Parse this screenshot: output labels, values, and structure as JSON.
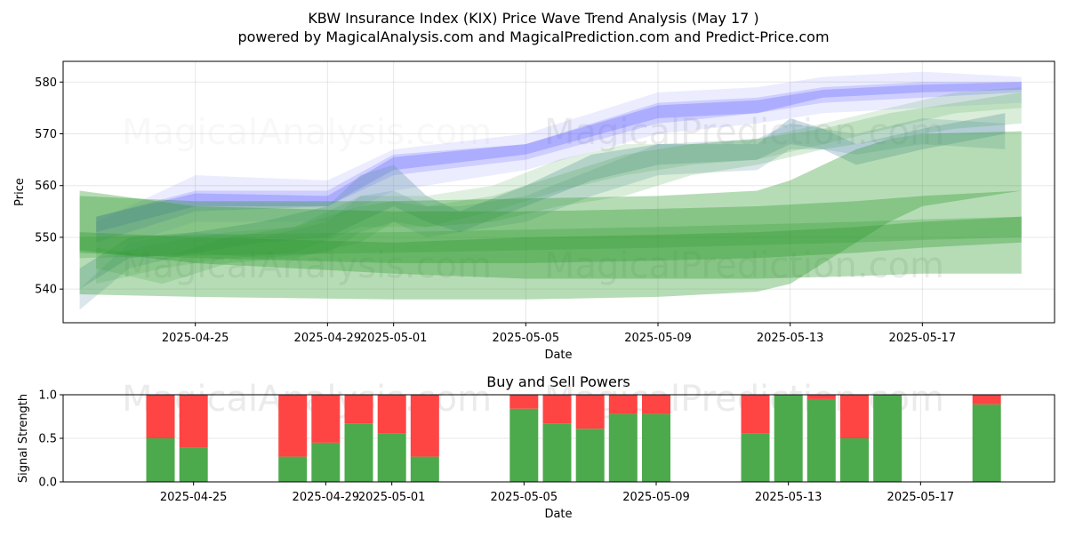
{
  "chart_data": [
    {
      "type": "area",
      "title": "KBW Insurance Index (KIX) Price Wave Trend Analysis (May 17 )",
      "subtitle": "powered by MagicalAnalysis.com and MagicalPrediction.com and Predict-Price.com",
      "xlabel": "Date",
      "ylabel": "Price",
      "xlim": [
        "2025-04-21",
        "2025-05-21"
      ],
      "ylim": [
        533.5,
        584.0
      ],
      "x_ticks": [
        "2025-04-25",
        "2025-04-29",
        "2025-05-01",
        "2025-05-05",
        "2025-05-09",
        "2025-05-13",
        "2025-05-17"
      ],
      "y_ticks": [
        540,
        550,
        560,
        570,
        580
      ],
      "grid": true,
      "watermarks": [
        "MagicalAnalysis.com",
        "MagicalPrediction.com"
      ],
      "colors": {
        "blue": "#6666ff",
        "green": "#2e9a2e",
        "steel": "#6b9ab0"
      },
      "series": [
        {
          "name": "blue-wave-1",
          "color": "blue",
          "opacity": 0.12,
          "x": [
            "2025-04-22",
            "2025-04-25",
            "2025-04-29",
            "2025-05-01",
            "2025-05-05",
            "2025-05-09",
            "2025-05-12",
            "2025-05-14",
            "2025-05-17",
            "2025-05-20"
          ],
          "lower": [
            547,
            553,
            553,
            559,
            563,
            570,
            572,
            574,
            575,
            576
          ],
          "upper": [
            553,
            562,
            561,
            567,
            570,
            578,
            579,
            581,
            582,
            581
          ]
        },
        {
          "name": "blue-wave-2",
          "color": "blue",
          "opacity": 0.22,
          "x": [
            "2025-04-22",
            "2025-04-25",
            "2025-04-29",
            "2025-05-01",
            "2025-05-05",
            "2025-05-09",
            "2025-05-12",
            "2025-05-14",
            "2025-05-17",
            "2025-05-20"
          ],
          "lower": [
            549,
            555,
            556,
            562,
            565,
            572,
            574,
            576,
            577,
            578
          ],
          "upper": [
            554,
            559,
            559,
            566,
            568,
            576,
            577,
            579,
            580,
            580
          ]
        },
        {
          "name": "blue-wave-3",
          "color": "blue",
          "opacity": 0.32,
          "x": [
            "2025-04-22",
            "2025-04-25",
            "2025-04-29",
            "2025-05-01",
            "2025-05-05",
            "2025-05-09",
            "2025-05-12",
            "2025-05-14",
            "2025-05-17",
            "2025-05-20"
          ],
          "lower": [
            551,
            556,
            556,
            563,
            566,
            573,
            574,
            577,
            578,
            578.5
          ],
          "upper": [
            554,
            558.5,
            558,
            565.5,
            568,
            575.5,
            576.5,
            578.5,
            579.5,
            580
          ]
        },
        {
          "name": "steel-wave-1",
          "color": "steel",
          "opacity": 0.35,
          "x": [
            "2025-04-21.5",
            "2025-04-23",
            "2025-04-25",
            "2025-04-27",
            "2025-04-29",
            "2025-04-30",
            "2025-05-01",
            "2025-05-02",
            "2025-05-03",
            "2025-05-05",
            "2025-05-07",
            "2025-05-09",
            "2025-05-12",
            "2025-05-13",
            "2025-05-14",
            "2025-05-15",
            "2025-05-17",
            "2025-05-19.5"
          ],
          "lower": [
            540,
            546,
            547,
            549,
            550,
            553,
            556,
            553,
            551,
            556,
            561,
            564,
            565,
            568,
            567,
            564,
            567,
            570
          ],
          "upper": [
            544,
            550,
            551,
            553,
            556,
            562,
            564,
            558,
            555,
            560,
            566,
            568,
            568,
            573,
            571,
            568,
            571,
            574
          ]
        },
        {
          "name": "steel-wave-2",
          "color": "steel",
          "opacity": 0.25,
          "x": [
            "2025-04-21.5",
            "2025-04-23",
            "2025-04-25",
            "2025-04-27",
            "2025-04-29",
            "2025-04-30",
            "2025-05-01",
            "2025-05-02",
            "2025-05-03",
            "2025-05-05",
            "2025-05-07",
            "2025-05-09",
            "2025-05-12",
            "2025-05-13",
            "2025-05-14",
            "2025-05-15",
            "2025-05-17",
            "2025-05-19.5"
          ],
          "lower": [
            536,
            544,
            547,
            546,
            547,
            551,
            553,
            550,
            551,
            553,
            558,
            562,
            563,
            567,
            567,
            566,
            568,
            567
          ],
          "upper": [
            540,
            549,
            551,
            550,
            553,
            558,
            559,
            556,
            556,
            558,
            563,
            568,
            569,
            572,
            571,
            570,
            573,
            572
          ]
        },
        {
          "name": "green-band-outer",
          "color": "green",
          "opacity": 0.35,
          "x": [
            "2025-04-21.5",
            "2025-04-25",
            "2025-05-01",
            "2025-05-05",
            "2025-05-09",
            "2025-05-12",
            "2025-05-13",
            "2025-05-14",
            "2025-05-15",
            "2025-05-16",
            "2025-05-17",
            "2025-05-20"
          ],
          "lower": [
            539,
            538.5,
            538,
            538,
            538.5,
            539.5,
            541,
            545,
            549,
            553,
            556,
            559
          ],
          "upper": [
            558,
            557,
            557,
            557.5,
            558,
            559,
            561,
            564,
            567,
            569,
            570,
            570.5
          ]
        },
        {
          "name": "green-band-1",
          "color": "green",
          "opacity": 0.35,
          "x": [
            "2025-04-21.5",
            "2025-04-25",
            "2025-05-01",
            "2025-05-05",
            "2025-05-09",
            "2025-05-12",
            "2025-05-15",
            "2025-05-17",
            "2025-05-20"
          ],
          "lower": [
            547,
            546,
            545,
            545,
            545.5,
            546,
            547,
            548,
            549
          ],
          "upper": [
            559,
            556,
            555,
            555,
            555.5,
            556,
            557,
            558,
            559
          ]
        },
        {
          "name": "green-band-2",
          "color": "green",
          "opacity": 0.35,
          "x": [
            "2025-04-21.5",
            "2025-04-25",
            "2025-05-01",
            "2025-05-05",
            "2025-05-09",
            "2025-05-12",
            "2025-05-15",
            "2025-05-17",
            "2025-05-20"
          ],
          "lower": [
            547.5,
            545,
            543,
            542,
            542,
            542,
            542.5,
            543,
            543
          ],
          "upper": [
            551,
            550,
            549,
            550,
            550.5,
            551,
            552,
            553,
            554
          ]
        },
        {
          "name": "green-band-3",
          "color": "green",
          "opacity": 0.25,
          "x": [
            "2025-04-21.5",
            "2025-04-25",
            "2025-05-01",
            "2025-05-05",
            "2025-05-09",
            "2025-05-12",
            "2025-05-15",
            "2025-05-17",
            "2025-05-20"
          ],
          "lower": [
            546,
            546.5,
            547,
            547.5,
            548,
            548.5,
            549,
            549.5,
            550
          ],
          "upper": [
            550,
            550.5,
            551,
            551.5,
            552,
            552.5,
            553,
            553.5,
            554
          ]
        },
        {
          "name": "green-wave-light-1",
          "color": "green",
          "opacity": 0.18,
          "x": [
            "2025-04-22",
            "2025-04-24",
            "2025-04-26",
            "2025-04-28",
            "2025-04-30",
            "2025-05-01",
            "2025-05-02",
            "2025-05-04",
            "2025-05-06",
            "2025-05-08",
            "2025-05-10",
            "2025-05-12",
            "2025-05-14",
            "2025-05-16",
            "2025-05-18",
            "2025-05-20"
          ],
          "lower": [
            544,
            541,
            545,
            546,
            549,
            553,
            552,
            553,
            556,
            558,
            562,
            564,
            567,
            569,
            571,
            572
          ],
          "upper": [
            548,
            546,
            550,
            552,
            556,
            557,
            556,
            558,
            562,
            566,
            568,
            569,
            571,
            574,
            576,
            578
          ]
        },
        {
          "name": "green-wave-light-2",
          "color": "green",
          "opacity": 0.15,
          "x": [
            "2025-04-22",
            "2025-04-24",
            "2025-04-26",
            "2025-04-28",
            "2025-04-30",
            "2025-05-02",
            "2025-05-04",
            "2025-05-06",
            "2025-05-08",
            "2025-05-10",
            "2025-05-12",
            "2025-05-14",
            "2025-05-16",
            "2025-05-18",
            "2025-05-20"
          ],
          "lower": [
            541,
            544,
            546,
            547,
            552,
            552,
            555,
            559,
            562,
            564,
            565,
            568,
            571,
            574,
            575
          ],
          "upper": [
            546,
            549,
            551,
            552,
            558,
            558,
            560,
            565,
            568,
            568,
            569,
            572,
            575,
            578,
            579
          ]
        }
      ]
    },
    {
      "type": "bar",
      "title": "Buy and Sell Powers",
      "xlabel": "Date",
      "ylabel": "Signal Strength",
      "ylim": [
        0,
        1.0
      ],
      "y_ticks": [
        "0.0",
        "0.5",
        "1.0"
      ],
      "x_ticks": [
        "2025-04-25",
        "2025-04-29",
        "2025-05-01",
        "2025-05-05",
        "2025-05-09",
        "2025-05-13",
        "2025-05-17"
      ],
      "grid": true,
      "colors": {
        "buy": "#4caa4c",
        "sell": "#ff4444"
      },
      "series": [
        {
          "name": "Buy",
          "x": [
            "2025-04-24",
            "2025-04-25",
            "2025-04-28",
            "2025-04-29",
            "2025-04-30",
            "2025-05-01",
            "2025-05-02",
            "2025-05-05",
            "2025-05-06",
            "2025-05-07",
            "2025-05-08",
            "2025-05-09",
            "2025-05-12",
            "2025-05-13",
            "2025-05-14",
            "2025-05-15",
            "2025-05-16",
            "2025-05-19"
          ],
          "values": [
            0.5,
            0.39,
            0.29,
            0.45,
            0.67,
            0.56,
            0.29,
            0.84,
            0.67,
            0.61,
            0.78,
            0.78,
            0.56,
            1.0,
            0.95,
            0.5,
            1.0,
            0.89
          ]
        },
        {
          "name": "Sell",
          "x": [
            "2025-04-24",
            "2025-04-25",
            "2025-04-28",
            "2025-04-29",
            "2025-04-30",
            "2025-05-01",
            "2025-05-02",
            "2025-05-05",
            "2025-05-06",
            "2025-05-07",
            "2025-05-08",
            "2025-05-09",
            "2025-05-12",
            "2025-05-13",
            "2025-05-14",
            "2025-05-15",
            "2025-05-16",
            "2025-05-19"
          ],
          "values": [
            0.5,
            0.61,
            0.71,
            0.55,
            0.33,
            0.44,
            0.71,
            0.16,
            0.33,
            0.39,
            0.22,
            0.22,
            0.44,
            0.0,
            0.05,
            0.5,
            0.0,
            0.11
          ]
        }
      ]
    }
  ]
}
